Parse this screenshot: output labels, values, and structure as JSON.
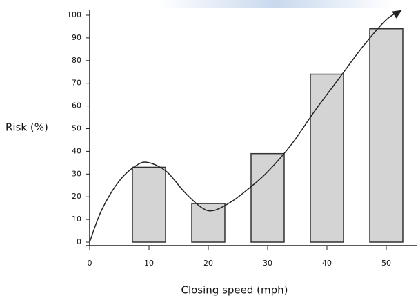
{
  "chart_data": {
    "type": "bar",
    "x_label": "Closing speed  (mph)",
    "y_label": "Risk (%)",
    "x": [
      10,
      20,
      30,
      40,
      50
    ],
    "series": [
      {
        "color": "#d4d4d4",
        "values": [
          33,
          17,
          39,
          74,
          94
        ]
      }
    ],
    "curve": {
      "color": "#222222",
      "x": [
        0,
        2,
        5,
        8,
        10,
        13,
        16,
        19,
        21,
        24,
        27,
        30,
        34,
        38,
        42,
        46,
        50,
        52.5
      ],
      "values": [
        0,
        14,
        27,
        34,
        35,
        31,
        22,
        15,
        14,
        18,
        24,
        31,
        43,
        58,
        72,
        86,
        98,
        102
      ]
    },
    "xlim": [
      0,
      55
    ],
    "xticks": [
      0,
      10,
      20,
      30,
      40,
      50
    ],
    "ylim": [
      0,
      100
    ],
    "yticks": [
      0,
      10,
      20,
      30,
      40,
      50,
      60,
      70,
      80,
      90,
      100
    ]
  }
}
